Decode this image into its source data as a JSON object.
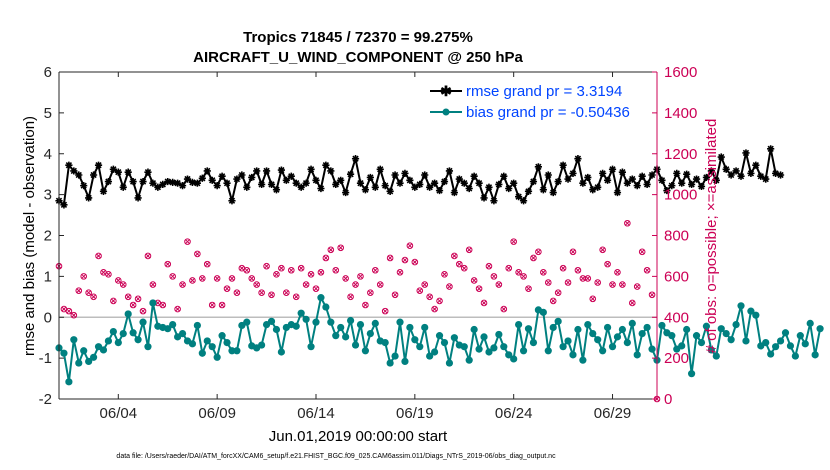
{
  "chart_data": {
    "type": "line",
    "title": "Tropics 71845 / 72370 = 99.275%",
    "subtitle": "AIRCRAFT_U_WIND_COMPONENT @ 250 hPa",
    "xlabel": "Jun.01,2019 00:00:00 start",
    "ylabel": "rmse and bias (model - observation)",
    "y2label": "# of obs: o=possible; ×=assimilated",
    "xlim": [
      1,
      31.25
    ],
    "ylim": [
      -2,
      6
    ],
    "y2lim": [
      0,
      1600
    ],
    "yticks": [
      "-2",
      "-1",
      "0",
      "1",
      "2",
      "3",
      "4",
      "5",
      "6"
    ],
    "y2ticks": [
      "0",
      "200",
      "400",
      "600",
      "800",
      "1000",
      "1200",
      "1400",
      "1600"
    ],
    "xticks": [
      {
        "x": 4,
        "label": "06/04"
      },
      {
        "x": 9,
        "label": "06/09"
      },
      {
        "x": 14,
        "label": "06/14"
      },
      {
        "x": 19,
        "label": "06/19"
      },
      {
        "x": 24,
        "label": "06/24"
      },
      {
        "x": 29,
        "label": "06/29"
      }
    ],
    "zero_line": 0,
    "legend_position": "top-right",
    "series": [
      {
        "name": "rmse grand pr = 3.3194",
        "axis": "left",
        "color": "#000000",
        "marker": "star",
        "x_start": 1,
        "x_step": 0.25,
        "values": [
          2.85,
          2.75,
          3.72,
          3.58,
          3.48,
          3.22,
          2.92,
          3.48,
          3.72,
          3.08,
          3.32,
          3.62,
          3.55,
          3.18,
          3.55,
          3.32,
          2.92,
          3.32,
          3.55,
          3.28,
          3.18,
          3.25,
          3.32,
          3.3,
          3.28,
          3.22,
          3.38,
          3.3,
          3.28,
          3.4,
          3.58,
          3.35,
          3.22,
          3.45,
          3.28,
          2.85,
          3.38,
          3.48,
          3.18,
          3.42,
          3.58,
          3.25,
          3.58,
          3.25,
          3.12,
          3.6,
          3.35,
          3.45,
          3.28,
          3.18,
          3.28,
          3.62,
          3.35,
          3.15,
          3.72,
          3.58,
          3.25,
          3.35,
          3.05,
          3.5,
          3.88,
          3.28,
          3.12,
          3.42,
          3.18,
          3.62,
          3.22,
          3.08,
          3.48,
          3.28,
          3.52,
          3.35,
          3.18,
          3.25,
          3.48,
          3.18,
          3.28,
          3.1,
          3.32,
          3.58,
          3.05,
          3.38,
          3.28,
          3.15,
          3.45,
          3.28,
          2.92,
          3.18,
          2.85,
          3.25,
          3.45,
          3.15,
          3.28,
          2.95,
          2.85,
          3.08,
          3.32,
          3.68,
          3.12,
          3.48,
          3.05,
          3.32,
          3.72,
          3.38,
          3.52,
          3.88,
          3.28,
          3.42,
          3.12,
          3.18,
          3.52,
          3.35,
          3.62,
          3.05,
          3.55,
          3.28,
          3.38,
          3.22,
          3.45,
          3.25,
          3.48,
          3.62,
          3.35,
          3.1,
          3.22,
          3.52,
          3.28,
          3.5,
          3.25,
          3.38,
          3.2,
          3.42,
          3.58,
          3.35,
          3.92,
          3.62,
          3.48,
          3.58,
          3.45,
          4.02,
          3.52,
          3.72,
          3.45,
          3.38,
          4.12,
          3.52,
          3.48
        ]
      },
      {
        "name": "bias grand pr = -0.50436",
        "axis": "left",
        "color": "#008080",
        "marker": "circle",
        "x_start": 1,
        "x_step": 0.25,
        "values": [
          -0.75,
          -0.88,
          -1.58,
          -0.55,
          -1.12,
          -0.82,
          -1.08,
          -0.98,
          -0.72,
          -0.8,
          -0.58,
          -0.35,
          -0.62,
          -0.4,
          0.08,
          -0.38,
          -0.55,
          -0.12,
          -0.72,
          0.35,
          -0.22,
          -0.25,
          -0.28,
          -0.18,
          -0.48,
          -0.4,
          -0.58,
          -0.65,
          -0.2,
          -0.88,
          -0.58,
          -0.72,
          -0.98,
          -0.45,
          -0.62,
          -0.82,
          -0.82,
          -0.2,
          -0.12,
          -0.7,
          -0.75,
          -0.68,
          -0.18,
          -0.1,
          -0.3,
          -0.85,
          -0.25,
          -0.18,
          -0.22,
          0.1,
          -0.05,
          -0.72,
          -0.12,
          0.48,
          0.25,
          -0.12,
          -0.45,
          -0.25,
          -0.48,
          -0.08,
          -0.68,
          -0.18,
          -0.82,
          -0.4,
          -0.15,
          -0.58,
          -0.62,
          -1.12,
          -0.95,
          -0.12,
          -1.08,
          -0.25,
          -0.55,
          -0.72,
          -0.25,
          -0.95,
          -0.85,
          -0.45,
          -0.62,
          -1.12,
          -0.5,
          -0.68,
          -0.72,
          -1.05,
          -0.3,
          -0.78,
          -0.48,
          -0.85,
          -0.75,
          -0.42,
          -0.72,
          -0.92,
          -1.02,
          -0.18,
          -0.82,
          -0.28,
          -0.62,
          0.18,
          0.12,
          -0.82,
          -0.25,
          -0.1,
          -0.72,
          -0.58,
          -0.92,
          -0.3,
          -1.05,
          -0.18,
          -0.4,
          -0.55,
          -0.82,
          -0.25,
          -0.72,
          -0.48,
          -0.3,
          -0.62,
          -0.15,
          -0.92,
          -0.4,
          -0.25,
          -0.78,
          -1.05,
          -0.2,
          -0.38,
          -0.45,
          -0.78,
          -0.7,
          -0.3,
          -1.38,
          -0.45,
          -0.62,
          -0.22,
          -0.8,
          -0.95,
          -0.28,
          -0.4,
          -0.55,
          -0.18,
          0.28,
          -0.58,
          0.15,
          0.05,
          -0.7,
          -0.62,
          -0.9,
          -0.72,
          -0.58,
          -0.38,
          -0.7,
          -0.95,
          -0.45,
          -0.65,
          -0.15,
          -0.92,
          -0.28
        ]
      },
      {
        "name": "# of obs possible",
        "axis": "right",
        "color": "#cc0055",
        "marker": "circle-open",
        "points": [
          [
            1.0,
            650
          ],
          [
            1.25,
            440
          ],
          [
            1.5,
            430
          ],
          [
            1.75,
            410
          ],
          [
            2.0,
            530
          ],
          [
            2.25,
            600
          ],
          [
            2.5,
            520
          ],
          [
            2.75,
            500
          ],
          [
            3.0,
            700
          ],
          [
            3.25,
            620
          ],
          [
            3.5,
            610
          ],
          [
            3.75,
            480
          ],
          [
            4.0,
            580
          ],
          [
            4.25,
            560
          ],
          [
            4.5,
            500
          ],
          [
            4.75,
            460
          ],
          [
            5.0,
            490
          ],
          [
            5.25,
            430
          ],
          [
            5.5,
            700
          ],
          [
            5.75,
            560
          ],
          [
            6.0,
            470
          ],
          [
            6.25,
            460
          ],
          [
            6.5,
            660
          ],
          [
            6.75,
            600
          ],
          [
            7.0,
            440
          ],
          [
            7.25,
            560
          ],
          [
            7.5,
            770
          ],
          [
            7.75,
            580
          ],
          [
            8.0,
            710
          ],
          [
            8.25,
            590
          ],
          [
            8.5,
            660
          ],
          [
            8.75,
            460
          ],
          [
            9.0,
            590
          ],
          [
            9.25,
            460
          ],
          [
            9.5,
            540
          ],
          [
            9.75,
            590
          ],
          [
            10.0,
            520
          ],
          [
            10.25,
            640
          ],
          [
            10.5,
            630
          ],
          [
            10.75,
            590
          ],
          [
            11.0,
            560
          ],
          [
            11.25,
            520
          ],
          [
            11.5,
            650
          ],
          [
            11.75,
            510
          ],
          [
            12.0,
            610
          ],
          [
            12.25,
            640
          ],
          [
            12.5,
            520
          ],
          [
            12.75,
            630
          ],
          [
            13.0,
            500
          ],
          [
            13.25,
            640
          ],
          [
            13.5,
            560
          ],
          [
            13.75,
            610
          ],
          [
            14.0,
            540
          ],
          [
            14.25,
            620
          ],
          [
            14.5,
            690
          ],
          [
            14.75,
            730
          ],
          [
            15.0,
            630
          ],
          [
            15.25,
            740
          ],
          [
            15.5,
            590
          ],
          [
            15.75,
            500
          ],
          [
            16.0,
            560
          ],
          [
            16.25,
            600
          ],
          [
            16.5,
            460
          ],
          [
            16.75,
            520
          ],
          [
            17.0,
            630
          ],
          [
            17.25,
            560
          ],
          [
            17.5,
            430
          ],
          [
            17.75,
            690
          ],
          [
            18.0,
            510
          ],
          [
            18.25,
            620
          ],
          [
            18.5,
            680
          ],
          [
            18.75,
            750
          ],
          [
            19.0,
            670
          ],
          [
            19.25,
            530
          ],
          [
            19.5,
            560
          ],
          [
            19.75,
            500
          ],
          [
            20.0,
            440
          ],
          [
            20.25,
            480
          ],
          [
            20.5,
            610
          ],
          [
            20.75,
            550
          ],
          [
            21.0,
            700
          ],
          [
            21.25,
            660
          ],
          [
            21.5,
            640
          ],
          [
            21.75,
            730
          ],
          [
            22.0,
            580
          ],
          [
            22.25,
            540
          ],
          [
            22.5,
            470
          ],
          [
            22.75,
            650
          ],
          [
            23.0,
            600
          ],
          [
            23.25,
            560
          ],
          [
            23.5,
            440
          ],
          [
            23.75,
            640
          ],
          [
            24.0,
            770
          ],
          [
            24.25,
            620
          ],
          [
            24.5,
            600
          ],
          [
            24.75,
            540
          ],
          [
            25.0,
            690
          ],
          [
            25.25,
            720
          ],
          [
            25.5,
            620
          ],
          [
            25.75,
            570
          ],
          [
            26.0,
            480
          ],
          [
            26.25,
            520
          ],
          [
            26.5,
            640
          ],
          [
            26.75,
            570
          ],
          [
            27.0,
            720
          ],
          [
            27.25,
            630
          ],
          [
            27.5,
            590
          ],
          [
            27.75,
            590
          ],
          [
            28.0,
            490
          ],
          [
            28.25,
            570
          ],
          [
            28.5,
            730
          ],
          [
            28.75,
            660
          ],
          [
            29.0,
            560
          ],
          [
            29.25,
            620
          ],
          [
            29.5,
            560
          ],
          [
            29.75,
            860
          ],
          [
            30.0,
            470
          ],
          [
            30.25,
            550
          ],
          [
            30.5,
            720
          ],
          [
            30.75,
            630
          ],
          [
            31.0,
            510
          ],
          [
            31.25,
            0
          ]
        ]
      }
    ]
  },
  "footnote": "data file: /Users/raeder/DAI/ATM_forcXX/CAM6_setup/f.e21.FHIST_BGC.f09_025.CAM6assim.011/Diags_NTrS_2019-06/obs_diag_output.nc"
}
